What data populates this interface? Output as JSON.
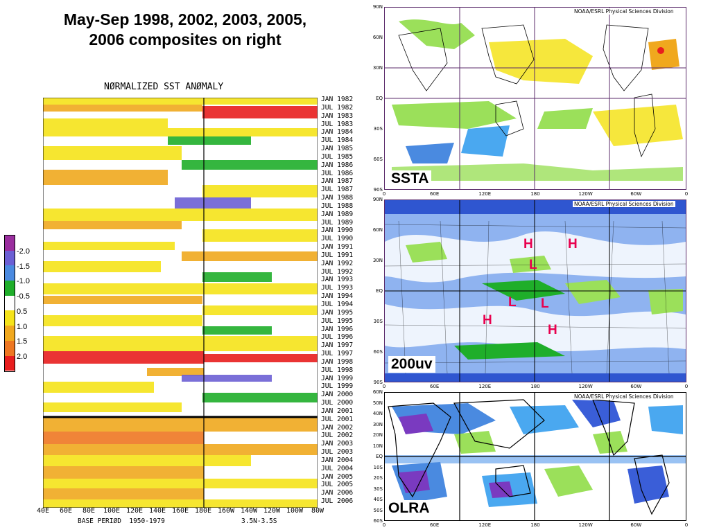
{
  "title_lines": [
    "May-Sep 1998, 2002, 2003, 2005,",
    "2006 composites on right"
  ],
  "hovmoller": {
    "title": "NØRMALIZED SST ANØMALY",
    "time_labels": [
      "JAN 1982",
      "JUL 1982",
      "JAN 1983",
      "JUL 1983",
      "JAN 1984",
      "JUL 1984",
      "JAN 1985",
      "JUL 1985",
      "JAN 1986",
      "JUL 1986",
      "JAN 1987",
      "JUL 1987",
      "JAN 1988",
      "JUL 1988",
      "JAN 1989",
      "JUL 1989",
      "JAN 1990",
      "JUL 1990",
      "JAN 1991",
      "JUL 1991",
      "JAN 1992",
      "JUL 1992",
      "JAN 1993",
      "JUL 1993",
      "JAN 1994",
      "JUL 1994",
      "JAN 1995",
      "JUL 1995",
      "JAN 1996",
      "JUL 1996",
      "JAN 1997",
      "JUL 1997",
      "JAN 1998",
      "JUL 1998",
      "JAN 1999",
      "JUL 1999",
      "JAN 2000",
      "JUL 2000",
      "JAN 2001",
      "JUL 2001",
      "JAN 2002",
      "JUL 2002",
      "JAN 2003",
      "JUL 2003",
      "JAN 2004",
      "JUL 2004",
      "JAN 2005",
      "JUL 2005",
      "JAN 2006",
      "JUL 2006"
    ],
    "x_labels": [
      "40E",
      "60E",
      "80E",
      "100E",
      "120E",
      "140E",
      "160E",
      "180E",
      "160W",
      "140W",
      "120W",
      "100W",
      "80W"
    ],
    "footer_left": "BASE PERIØD  1950-1979",
    "footer_right": "3.5N-3.5S"
  },
  "colorbar": {
    "labels": [
      "-2.0",
      "-1.5",
      "-1.0",
      "-0.5",
      "0.5",
      "1.0",
      "1.5",
      "2.0"
    ],
    "colors": [
      "#9a2e9e",
      "#6b5fd4",
      "#4a8ae0",
      "#1fae2a",
      "#ffffff",
      "#f5e31a",
      "#f0a81e",
      "#ee7722",
      "#e81e1e"
    ]
  },
  "maps": {
    "ssta": {
      "credit": "NOAA/ESRL Physical Sciences Division",
      "tag": "SSTA",
      "lat_labels": [
        "90N",
        "60N",
        "30N",
        "EQ",
        "30S",
        "60S",
        "90S"
      ],
      "lon_labels": [
        "0",
        "60E",
        "120E",
        "180",
        "120W",
        "60W",
        "0"
      ]
    },
    "uv": {
      "credit": "NOAA/ESRL Physical Sciences Division",
      "tag": "200uv",
      "lat_labels": [
        "90N",
        "60N",
        "30N",
        "EQ",
        "30S",
        "60S",
        "90S"
      ],
      "lon_labels": [
        "0",
        "60E",
        "120E",
        "180",
        "120W",
        "60W",
        "0"
      ],
      "markers": [
        "H",
        "H",
        "L",
        "L",
        "L",
        "H",
        "H"
      ]
    },
    "olra": {
      "credit": "NOAA/ESRL Physical Sciences Division",
      "tag": "OLRA",
      "lat_labels": [
        "60N",
        "50N",
        "40N",
        "30N",
        "20N",
        "10N",
        "EQ",
        "10S",
        "20S",
        "30S",
        "40S",
        "50S",
        "60S"
      ],
      "lon_labels": [
        "0",
        "60E",
        "120E",
        "180",
        "120W",
        "60W",
        "0"
      ]
    }
  }
}
